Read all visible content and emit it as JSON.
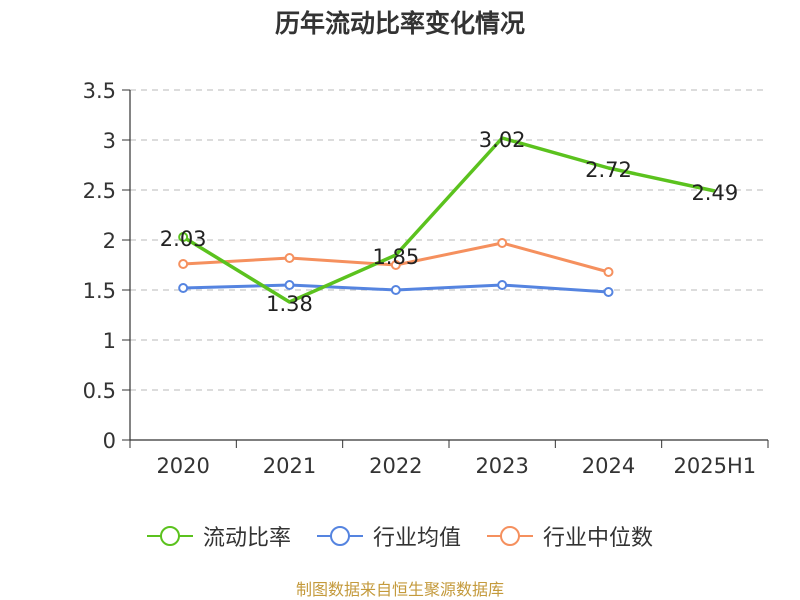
{
  "chart_data": {
    "type": "line",
    "title": "历年流动比率变化情况",
    "categories": [
      "2020",
      "2021",
      "2022",
      "2023",
      "2024",
      "2025H1"
    ],
    "yticks": [
      "0",
      "0.5",
      "1",
      "1.5",
      "2",
      "2.5",
      "3",
      "3.5"
    ],
    "ylim": [
      0,
      3.5
    ],
    "grid": true,
    "legend_position": "bottom",
    "series": [
      {
        "name": "流动比率",
        "color": "#5bc21e",
        "values": [
          2.03,
          1.38,
          1.85,
          3.02,
          2.72,
          2.49
        ],
        "labels": [
          "2.03",
          "1.38",
          "1.85",
          "3.02",
          "2.72",
          "2.49"
        ],
        "markers": [
          true,
          false,
          false,
          false,
          false,
          false
        ]
      },
      {
        "name": "行业均值",
        "color": "#5584e0",
        "values": [
          1.52,
          1.55,
          1.5,
          1.55,
          1.48,
          null
        ]
      },
      {
        "name": "行业中位数",
        "color": "#f5905e",
        "values": [
          1.76,
          1.82,
          1.75,
          1.97,
          1.68,
          null
        ]
      }
    ]
  },
  "footer": {
    "source": "制图数据来自恒生聚源数据库"
  }
}
